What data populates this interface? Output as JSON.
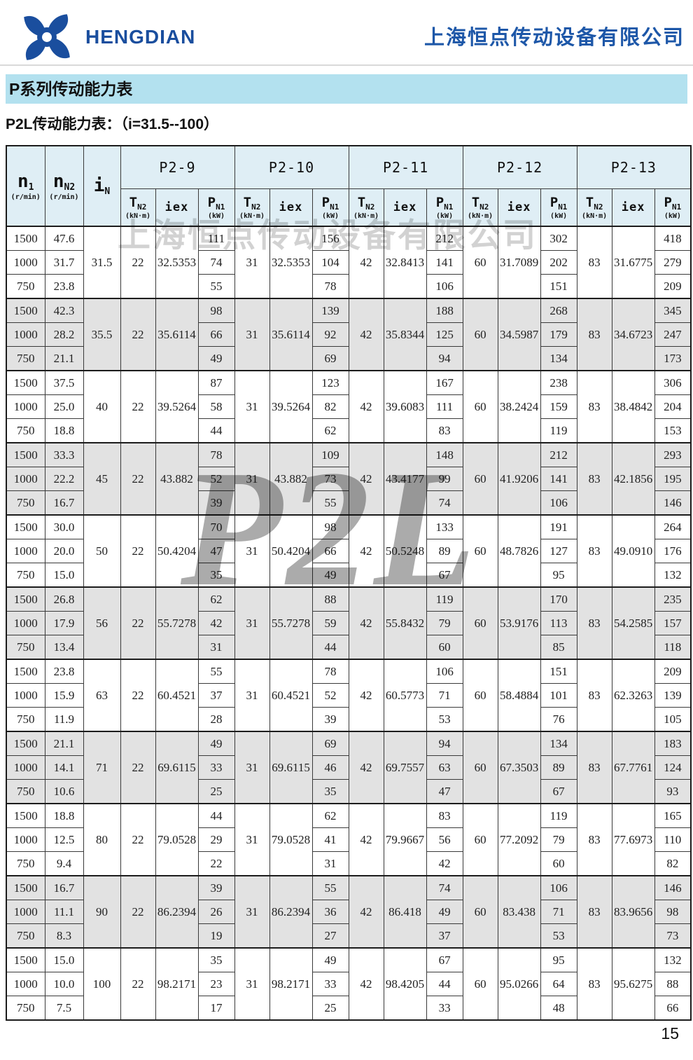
{
  "header": {
    "logo_text": "HENGDIAN",
    "company_name": "上海恒点传动设备有限公司"
  },
  "section_title": "P系列传动能力表",
  "subtitle": "P2L传动能力表：（i=31.5--100）",
  "watermark": {
    "company": "上海恒点传动设备有限公司",
    "model": "P2L"
  },
  "page_number": "15",
  "colors": {
    "brand_blue": "#1a4e9e",
    "company_blue": "#1d57a8",
    "title_bar_bg": "#b3e1ef",
    "table_header_bg": "#dfeef5",
    "row_shade_gray": "#e2e2e2"
  },
  "table": {
    "speed_headers": [
      {
        "base": "n",
        "sub": "1",
        "unit": "(r/min)"
      },
      {
        "base": "n",
        "sub": "N2",
        "unit": "(r/min)"
      },
      {
        "base": "i",
        "sub": "N",
        "unit": ""
      }
    ],
    "model_names": [
      "P2-9",
      "P2-10",
      "P2-11",
      "P2-12",
      "P2-13"
    ],
    "sub_headers": {
      "t": {
        "base": "T",
        "sub": "N2",
        "unit": "(kN·m)"
      },
      "iex": {
        "label": "iex"
      },
      "p": {
        "base": "P",
        "sub": "N1",
        "unit": "(kW)"
      }
    },
    "groups": [
      {
        "iN": "31.5",
        "n1": [
          "1500",
          "1000",
          "750"
        ],
        "n2": [
          "47.6",
          "31.7",
          "23.8"
        ],
        "models": [
          {
            "t": "22",
            "iex": "32.5353",
            "p": [
              "111",
              "74",
              "55"
            ]
          },
          {
            "t": "31",
            "iex": "32.5353",
            "p": [
              "156",
              "104",
              "78"
            ]
          },
          {
            "t": "42",
            "iex": "32.8413",
            "p": [
              "212",
              "141",
              "106"
            ]
          },
          {
            "t": "60",
            "iex": "31.7089",
            "p": [
              "302",
              "202",
              "151"
            ]
          },
          {
            "t": "83",
            "iex": "31.6775",
            "p": [
              "418",
              "279",
              "209"
            ]
          }
        ]
      },
      {
        "iN": "35.5",
        "n1": [
          "1500",
          "1000",
          "750"
        ],
        "n2": [
          "42.3",
          "28.2",
          "21.1"
        ],
        "models": [
          {
            "t": "22",
            "iex": "35.6114",
            "p": [
              "98",
              "66",
              "49"
            ]
          },
          {
            "t": "31",
            "iex": "35.6114",
            "p": [
              "139",
              "92",
              "69"
            ]
          },
          {
            "t": "42",
            "iex": "35.8344",
            "p": [
              "188",
              "125",
              "94"
            ]
          },
          {
            "t": "60",
            "iex": "34.5987",
            "p": [
              "268",
              "179",
              "134"
            ]
          },
          {
            "t": "83",
            "iex": "34.6723",
            "p": [
              "345",
              "247",
              "173"
            ]
          }
        ]
      },
      {
        "iN": "40",
        "n1": [
          "1500",
          "1000",
          "750"
        ],
        "n2": [
          "37.5",
          "25.0",
          "18.8"
        ],
        "models": [
          {
            "t": "22",
            "iex": "39.5264",
            "p": [
              "87",
              "58",
              "44"
            ]
          },
          {
            "t": "31",
            "iex": "39.5264",
            "p": [
              "123",
              "82",
              "62"
            ]
          },
          {
            "t": "42",
            "iex": "39.6083",
            "p": [
              "167",
              "111",
              "83"
            ]
          },
          {
            "t": "60",
            "iex": "38.2424",
            "p": [
              "238",
              "159",
              "119"
            ]
          },
          {
            "t": "83",
            "iex": "38.4842",
            "p": [
              "306",
              "204",
              "153"
            ]
          }
        ]
      },
      {
        "iN": "45",
        "n1": [
          "1500",
          "1000",
          "750"
        ],
        "n2": [
          "33.3",
          "22.2",
          "16.7"
        ],
        "models": [
          {
            "t": "22",
            "iex": "43.882",
            "p": [
              "78",
              "52",
              "39"
            ]
          },
          {
            "t": "31",
            "iex": "43.882",
            "p": [
              "109",
              "73",
              "55"
            ]
          },
          {
            "t": "42",
            "iex": "43.4177",
            "p": [
              "148",
              "99",
              "74"
            ]
          },
          {
            "t": "60",
            "iex": "41.9206",
            "p": [
              "212",
              "141",
              "106"
            ]
          },
          {
            "t": "83",
            "iex": "42.1856",
            "p": [
              "293",
              "195",
              "146"
            ]
          }
        ]
      },
      {
        "iN": "50",
        "n1": [
          "1500",
          "1000",
          "750"
        ],
        "n2": [
          "30.0",
          "20.0",
          "15.0"
        ],
        "models": [
          {
            "t": "22",
            "iex": "50.4204",
            "p": [
              "70",
              "47",
              "35"
            ]
          },
          {
            "t": "31",
            "iex": "50.4204",
            "p": [
              "98",
              "66",
              "49"
            ]
          },
          {
            "t": "42",
            "iex": "50.5248",
            "p": [
              "133",
              "89",
              "67"
            ]
          },
          {
            "t": "60",
            "iex": "48.7826",
            "p": [
              "191",
              "127",
              "95"
            ]
          },
          {
            "t": "83",
            "iex": "49.0910",
            "p": [
              "264",
              "176",
              "132"
            ]
          }
        ]
      },
      {
        "iN": "56",
        "n1": [
          "1500",
          "1000",
          "750"
        ],
        "n2": [
          "26.8",
          "17.9",
          "13.4"
        ],
        "models": [
          {
            "t": "22",
            "iex": "55.7278",
            "p": [
              "62",
              "42",
              "31"
            ]
          },
          {
            "t": "31",
            "iex": "55.7278",
            "p": [
              "88",
              "59",
              "44"
            ]
          },
          {
            "t": "42",
            "iex": "55.8432",
            "p": [
              "119",
              "79",
              "60"
            ]
          },
          {
            "t": "60",
            "iex": "53.9176",
            "p": [
              "170",
              "113",
              "85"
            ]
          },
          {
            "t": "83",
            "iex": "54.2585",
            "p": [
              "235",
              "157",
              "118"
            ]
          }
        ]
      },
      {
        "iN": "63",
        "n1": [
          "1500",
          "1000",
          "750"
        ],
        "n2": [
          "23.8",
          "15.9",
          "11.9"
        ],
        "models": [
          {
            "t": "22",
            "iex": "60.4521",
            "p": [
              "55",
              "37",
              "28"
            ]
          },
          {
            "t": "31",
            "iex": "60.4521",
            "p": [
              "78",
              "52",
              "39"
            ]
          },
          {
            "t": "42",
            "iex": "60.5773",
            "p": [
              "106",
              "71",
              "53"
            ]
          },
          {
            "t": "60",
            "iex": "58.4884",
            "p": [
              "151",
              "101",
              "76"
            ]
          },
          {
            "t": "83",
            "iex": "62.3263",
            "p": [
              "209",
              "139",
              "105"
            ]
          }
        ]
      },
      {
        "iN": "71",
        "n1": [
          "1500",
          "1000",
          "750"
        ],
        "n2": [
          "21.1",
          "14.1",
          "10.6"
        ],
        "models": [
          {
            "t": "22",
            "iex": "69.6115",
            "p": [
              "49",
              "33",
              "25"
            ]
          },
          {
            "t": "31",
            "iex": "69.6115",
            "p": [
              "69",
              "46",
              "35"
            ]
          },
          {
            "t": "42",
            "iex": "69.7557",
            "p": [
              "94",
              "63",
              "47"
            ]
          },
          {
            "t": "60",
            "iex": "67.3503",
            "p": [
              "134",
              "89",
              "67"
            ]
          },
          {
            "t": "83",
            "iex": "67.7761",
            "p": [
              "183",
              "124",
              "93"
            ]
          }
        ]
      },
      {
        "iN": "80",
        "n1": [
          "1500",
          "1000",
          "750"
        ],
        "n2": [
          "18.8",
          "12.5",
          "9.4"
        ],
        "models": [
          {
            "t": "22",
            "iex": "79.0528",
            "p": [
              "44",
              "29",
              "22"
            ]
          },
          {
            "t": "31",
            "iex": "79.0528",
            "p": [
              "62",
              "41",
              "31"
            ]
          },
          {
            "t": "42",
            "iex": "79.9667",
            "p": [
              "83",
              "56",
              "42"
            ]
          },
          {
            "t": "60",
            "iex": "77.2092",
            "p": [
              "119",
              "79",
              "60"
            ]
          },
          {
            "t": "83",
            "iex": "77.6973",
            "p": [
              "165",
              "110",
              "82"
            ]
          }
        ]
      },
      {
        "iN": "90",
        "n1": [
          "1500",
          "1000",
          "750"
        ],
        "n2": [
          "16.7",
          "11.1",
          "8.3"
        ],
        "models": [
          {
            "t": "22",
            "iex": "86.2394",
            "p": [
              "39",
              "26",
              "19"
            ]
          },
          {
            "t": "31",
            "iex": "86.2394",
            "p": [
              "55",
              "36",
              "27"
            ]
          },
          {
            "t": "42",
            "iex": "86.418",
            "p": [
              "74",
              "49",
              "37"
            ]
          },
          {
            "t": "60",
            "iex": "83.438",
            "p": [
              "106",
              "71",
              "53"
            ]
          },
          {
            "t": "83",
            "iex": "83.9656",
            "p": [
              "146",
              "98",
              "73"
            ]
          }
        ]
      },
      {
        "iN": "100",
        "n1": [
          "1500",
          "1000",
          "750"
        ],
        "n2": [
          "15.0",
          "10.0",
          "7.5"
        ],
        "models": [
          {
            "t": "22",
            "iex": "98.2171",
            "p": [
              "35",
              "23",
              "17"
            ]
          },
          {
            "t": "31",
            "iex": "98.2171",
            "p": [
              "49",
              "33",
              "25"
            ]
          },
          {
            "t": "42",
            "iex": "98.4205",
            "p": [
              "67",
              "44",
              "33"
            ]
          },
          {
            "t": "60",
            "iex": "95.0266",
            "p": [
              "95",
              "64",
              "48"
            ]
          },
          {
            "t": "83",
            "iex": "95.6275",
            "p": [
              "132",
              "88",
              "66"
            ]
          }
        ]
      }
    ]
  }
}
